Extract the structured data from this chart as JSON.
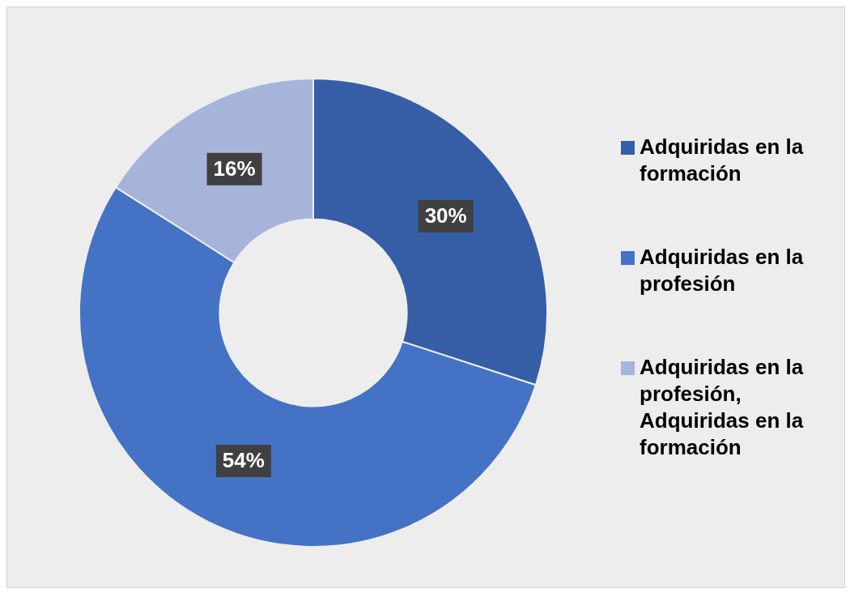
{
  "chart_data": {
    "type": "donut",
    "categories": [
      "Adquiridas en la formación",
      "Adquiridas en la profesión",
      "Adquiridas en la profesión, Adquiridas en la formación"
    ],
    "values": [
      30,
      54,
      16
    ],
    "colors": [
      "#355ea6",
      "#4472c4",
      "#a7b4da"
    ],
    "value_labels": [
      "30%",
      "54%",
      "16%"
    ],
    "legend": "right"
  }
}
